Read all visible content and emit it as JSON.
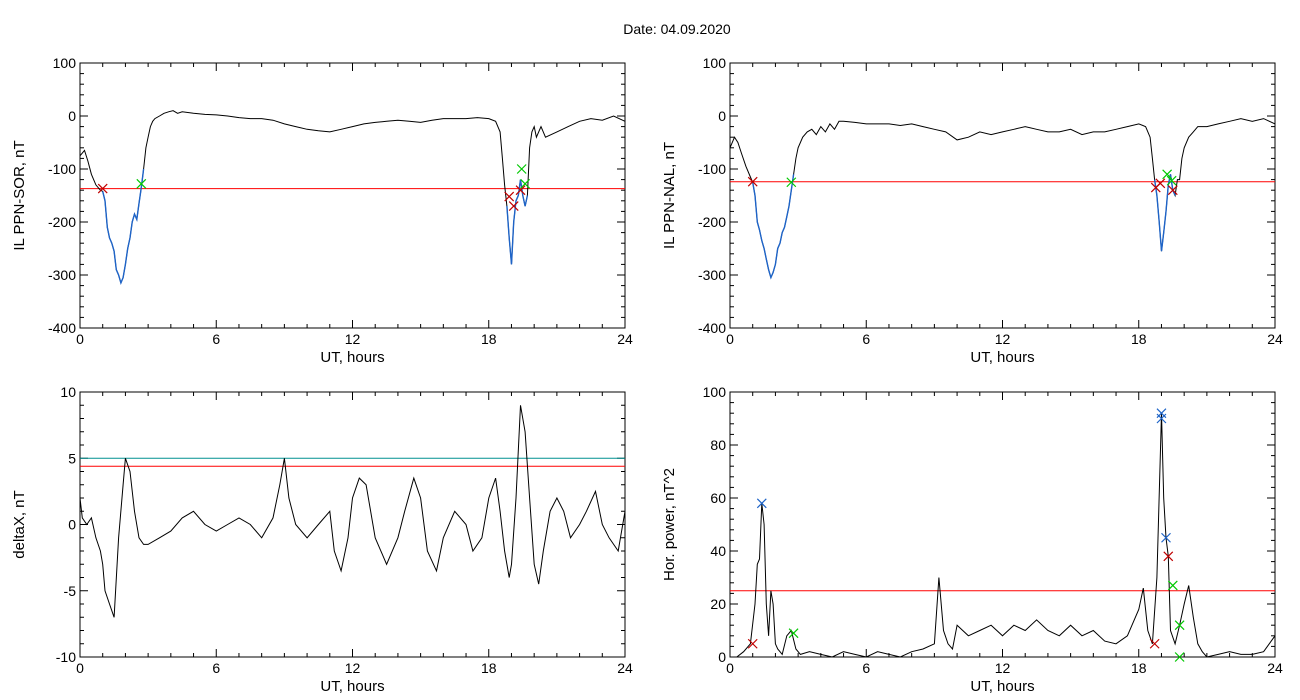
{
  "title": "Date:  04.09.2020",
  "colors": {
    "trace": "#000000",
    "threshold": "#ff0000",
    "highlight": "#1e64c8",
    "marker_red": "#c00000",
    "marker_green": "#00c800",
    "marker_blue": "#1e64c8",
    "cyan_line": "#009090"
  },
  "chart_data": [
    {
      "type": "line",
      "xlabel": "UT, hours",
      "ylabel": "IL PPN-SOR, nT",
      "xlim": [
        0,
        24
      ],
      "ylim": [
        -400,
        100
      ],
      "xticks": [
        "0",
        "6",
        "12",
        "18",
        "24"
      ],
      "yticks": [
        "100",
        "0",
        "-100",
        "-200",
        "-300",
        "-400"
      ],
      "series": [
        {
          "x": [
            0,
            0.2,
            0.35,
            0.5,
            0.7,
            0.9,
            1.0,
            1.1,
            1.2,
            1.3,
            1.4,
            1.5,
            1.6,
            1.7,
            1.8,
            1.9,
            2.0,
            2.1,
            2.2,
            2.3,
            2.4,
            2.5,
            2.6,
            2.7,
            2.8,
            2.9,
            3.0,
            3.1,
            3.2,
            3.3,
            3.5,
            3.7,
            3.9,
            4.1,
            4.3,
            4.5,
            5,
            5.5,
            6,
            6.5,
            7,
            7.5,
            8,
            8.5,
            9,
            9.5,
            10,
            10.5,
            11,
            11.5,
            12,
            12.5,
            13,
            13.5,
            14,
            14.5,
            15,
            15.5,
            16,
            16.5,
            17,
            17.5,
            18,
            18.3,
            18.5,
            18.6,
            18.7,
            18.8,
            18.9,
            19.0,
            19.05,
            19.1,
            19.2,
            19.3,
            19.4,
            19.5,
            19.6,
            19.7,
            19.8,
            19.9,
            20.0,
            20.1,
            20.3,
            20.5,
            21,
            21.5,
            22,
            22.5,
            23,
            23.5,
            24
          ],
          "y": [
            -75,
            -65,
            -85,
            -110,
            -130,
            -140,
            -142,
            -160,
            -210,
            -230,
            -240,
            -255,
            -290,
            -300,
            -315,
            -305,
            -280,
            -250,
            -230,
            -200,
            -185,
            -195,
            -165,
            -135,
            -100,
            -60,
            -40,
            -20,
            -10,
            -5,
            0,
            5,
            8,
            10,
            5,
            8,
            5,
            3,
            2,
            0,
            -3,
            -5,
            -5,
            -8,
            -15,
            -20,
            -25,
            -28,
            -30,
            -25,
            -20,
            -15,
            -12,
            -10,
            -8,
            -10,
            -12,
            -8,
            -5,
            -5,
            -5,
            -3,
            -5,
            -10,
            -30,
            -80,
            -130,
            -170,
            -230,
            -280,
            -240,
            -200,
            -160,
            -150,
            -120,
            -150,
            -170,
            -150,
            -60,
            -30,
            -20,
            -40,
            -20,
            -40,
            -30,
            -20,
            -10,
            -5,
            -8,
            0,
            -10
          ]
        }
      ],
      "threshold": -137,
      "highlight_ranges": [
        [
          1.0,
          2.8
        ],
        [
          18.8,
          19.7
        ]
      ],
      "markers": [
        {
          "x": 1.0,
          "y": -137,
          "color": "red"
        },
        {
          "x": 2.7,
          "y": -128,
          "color": "green"
        },
        {
          "x": 18.9,
          "y": -152,
          "color": "red"
        },
        {
          "x": 19.1,
          "y": -170,
          "color": "red"
        },
        {
          "x": 19.4,
          "y": -140,
          "color": "red"
        },
        {
          "x": 19.45,
          "y": -100,
          "color": "green"
        },
        {
          "x": 19.6,
          "y": -128,
          "color": "green"
        }
      ]
    },
    {
      "type": "line",
      "xlabel": "UT, hours",
      "ylabel": "IL PPN-NAL, nT",
      "xlim": [
        0,
        24
      ],
      "ylim": [
        -400,
        100
      ],
      "xticks": [
        "0",
        "6",
        "12",
        "18",
        "24"
      ],
      "yticks": [
        "100",
        "0",
        "-100",
        "-200",
        "-300",
        "-400"
      ],
      "series": [
        {
          "x": [
            0,
            0.2,
            0.35,
            0.5,
            0.7,
            0.9,
            1.0,
            1.1,
            1.2,
            1.3,
            1.4,
            1.5,
            1.6,
            1.7,
            1.8,
            1.9,
            2.0,
            2.1,
            2.2,
            2.3,
            2.4,
            2.5,
            2.6,
            2.7,
            2.8,
            2.9,
            3.0,
            3.2,
            3.4,
            3.6,
            3.8,
            4.0,
            4.2,
            4.4,
            4.6,
            4.8,
            5,
            5.5,
            6,
            6.5,
            7,
            7.5,
            8,
            8.5,
            9,
            9.5,
            10,
            10.5,
            11,
            11.5,
            12,
            12.5,
            13,
            13.5,
            14,
            14.5,
            15,
            15.5,
            16,
            16.5,
            17,
            17.5,
            18,
            18.3,
            18.5,
            18.6,
            18.7,
            18.8,
            18.9,
            19.0,
            19.1,
            19.2,
            19.3,
            19.4,
            19.5,
            19.6,
            19.7,
            19.8,
            19.9,
            20.0,
            20.2,
            20.4,
            20.6,
            21,
            21.5,
            22,
            22.5,
            23,
            23.5,
            24
          ],
          "y": [
            -60,
            -40,
            -50,
            -70,
            -95,
            -115,
            -125,
            -150,
            -200,
            -215,
            -235,
            -250,
            -270,
            -290,
            -305,
            -295,
            -280,
            -250,
            -240,
            -220,
            -210,
            -190,
            -170,
            -140,
            -110,
            -80,
            -60,
            -40,
            -30,
            -25,
            -35,
            -20,
            -30,
            -15,
            -25,
            -10,
            -10,
            -12,
            -15,
            -15,
            -15,
            -18,
            -15,
            -20,
            -25,
            -30,
            -45,
            -40,
            -30,
            -35,
            -30,
            -25,
            -20,
            -25,
            -30,
            -30,
            -25,
            -35,
            -30,
            -30,
            -25,
            -20,
            -15,
            -20,
            -40,
            -80,
            -120,
            -150,
            -200,
            -255,
            -220,
            -180,
            -130,
            -110,
            -140,
            -150,
            -120,
            -120,
            -80,
            -60,
            -40,
            -30,
            -20,
            -20,
            -15,
            -10,
            -5,
            -10,
            -5,
            -15
          ]
        }
      ],
      "threshold": -124,
      "highlight_ranges": [
        [
          1.0,
          2.8
        ],
        [
          18.7,
          19.6
        ]
      ],
      "markers": [
        {
          "x": 1.0,
          "y": -124,
          "color": "red"
        },
        {
          "x": 2.7,
          "y": -125,
          "color": "green"
        },
        {
          "x": 18.75,
          "y": -135,
          "color": "red"
        },
        {
          "x": 18.95,
          "y": -127,
          "color": "red"
        },
        {
          "x": 19.5,
          "y": -140,
          "color": "red"
        },
        {
          "x": 19.25,
          "y": -110,
          "color": "green"
        },
        {
          "x": 19.45,
          "y": -122,
          "color": "green"
        }
      ]
    },
    {
      "type": "line",
      "xlabel": "UT, hours",
      "ylabel": "deltaX, nT",
      "xlim": [
        0,
        24
      ],
      "ylim": [
        -10,
        10
      ],
      "xticks": [
        "0",
        "6",
        "12",
        "18",
        "24"
      ],
      "yticks": [
        "10",
        "5",
        "0",
        "-5",
        "-10"
      ],
      "series": [
        {
          "x": [
            0,
            0.1,
            0.3,
            0.5,
            0.7,
            0.9,
            1.0,
            1.1,
            1.3,
            1.5,
            1.7,
            1.9,
            2.0,
            2.2,
            2.4,
            2.6,
            2.8,
            3.0,
            3.5,
            4,
            4.5,
            5,
            5.5,
            6,
            6.5,
            7,
            7.5,
            8,
            8.5,
            8.8,
            9.0,
            9.2,
            9.5,
            10,
            10.5,
            11,
            11.2,
            11.5,
            11.8,
            12,
            12.3,
            12.6,
            13,
            13.5,
            14,
            14.3,
            14.7,
            15,
            15.3,
            15.7,
            16,
            16.5,
            17,
            17.3,
            17.7,
            18,
            18.3,
            18.5,
            18.7,
            18.9,
            19.0,
            19.2,
            19.4,
            19.6,
            19.8,
            20,
            20.2,
            20.4,
            20.7,
            21,
            21.3,
            21.6,
            22,
            22.3,
            22.7,
            23,
            23.3,
            23.7,
            24
          ],
          "y": [
            2,
            0.5,
            0,
            0.5,
            -1,
            -2,
            -3,
            -5,
            -6,
            -7,
            -1,
            3,
            5,
            4,
            1,
            -1,
            -1.5,
            -1.5,
            -1,
            -0.5,
            0.5,
            1,
            0,
            -0.5,
            0,
            0.5,
            0,
            -1,
            0.5,
            3,
            5,
            2,
            0,
            -1,
            0,
            1,
            -2,
            -3.5,
            -1,
            2,
            3.5,
            3,
            -1,
            -3,
            -1,
            1,
            3.5,
            2,
            -2,
            -3.5,
            -1,
            1,
            0,
            -2,
            -1,
            2,
            3.5,
            1,
            -2,
            -4,
            -3,
            2,
            9,
            7,
            2,
            -3,
            -4.5,
            -2,
            1,
            2,
            1,
            -1,
            0,
            1,
            2.5,
            0,
            -1,
            -2,
            1
          ]
        }
      ],
      "threshold": 4.4,
      "threshold_cyan": 5.0,
      "markers": []
    },
    {
      "type": "line",
      "xlabel": "UT, hours",
      "ylabel": "Hor. power, nT^2",
      "xlim": [
        0,
        24
      ],
      "ylim": [
        0,
        100
      ],
      "xticks": [
        "0",
        "6",
        "12",
        "18",
        "24"
      ],
      "yticks": [
        "100",
        "80",
        "60",
        "40",
        "20",
        "0"
      ],
      "series": [
        {
          "x": [
            0,
            0.3,
            0.6,
            0.9,
            1.1,
            1.2,
            1.3,
            1.4,
            1.5,
            1.6,
            1.7,
            1.8,
            1.9,
            2.0,
            2.1,
            2.2,
            2.3,
            2.5,
            2.7,
            2.9,
            3.1,
            3.5,
            4,
            4.5,
            5,
            5.5,
            6,
            6.5,
            7,
            7.5,
            8,
            8.5,
            9,
            9.2,
            9.4,
            9.6,
            9.8,
            10,
            10.5,
            11,
            11.5,
            12,
            12.5,
            13,
            13.5,
            14,
            14.5,
            15,
            15.5,
            16,
            16.5,
            17,
            17.5,
            18,
            18.2,
            18.4,
            18.6,
            18.8,
            19.0,
            19.1,
            19.2,
            19.3,
            19.4,
            19.6,
            19.8,
            20.0,
            20.2,
            20.4,
            20.6,
            20.8,
            21,
            21.5,
            22,
            22.5,
            23,
            23.5,
            24
          ],
          "y": [
            0,
            0,
            2,
            5,
            20,
            35,
            37,
            58,
            50,
            20,
            8,
            25,
            20,
            5,
            3,
            2,
            1,
            8,
            10,
            3,
            1,
            2,
            1,
            0,
            2,
            1,
            0,
            2,
            1,
            0,
            2,
            3,
            5,
            30,
            10,
            5,
            3,
            12,
            8,
            10,
            12,
            8,
            12,
            10,
            14,
            10,
            8,
            12,
            8,
            10,
            6,
            5,
            8,
            18,
            26,
            10,
            5,
            30,
            92,
            60,
            45,
            38,
            10,
            5,
            12,
            20,
            27,
            15,
            5,
            2,
            0,
            1,
            2,
            1,
            1,
            2,
            8
          ]
        }
      ],
      "threshold": 25,
      "markers": [
        {
          "x": 1.0,
          "y": 5,
          "color": "red"
        },
        {
          "x": 1.4,
          "y": 58,
          "color": "blue"
        },
        {
          "x": 2.8,
          "y": 9,
          "color": "green"
        },
        {
          "x": 18.7,
          "y": 5,
          "color": "red"
        },
        {
          "x": 19.0,
          "y": 92,
          "color": "blue"
        },
        {
          "x": 19.0,
          "y": 90,
          "color": "blue"
        },
        {
          "x": 19.2,
          "y": 45,
          "color": "blue"
        },
        {
          "x": 19.3,
          "y": 38,
          "color": "red"
        },
        {
          "x": 19.5,
          "y": 27,
          "color": "green"
        },
        {
          "x": 19.8,
          "y": 12,
          "color": "green"
        },
        {
          "x": 19.8,
          "y": 0,
          "color": "green"
        }
      ]
    }
  ]
}
